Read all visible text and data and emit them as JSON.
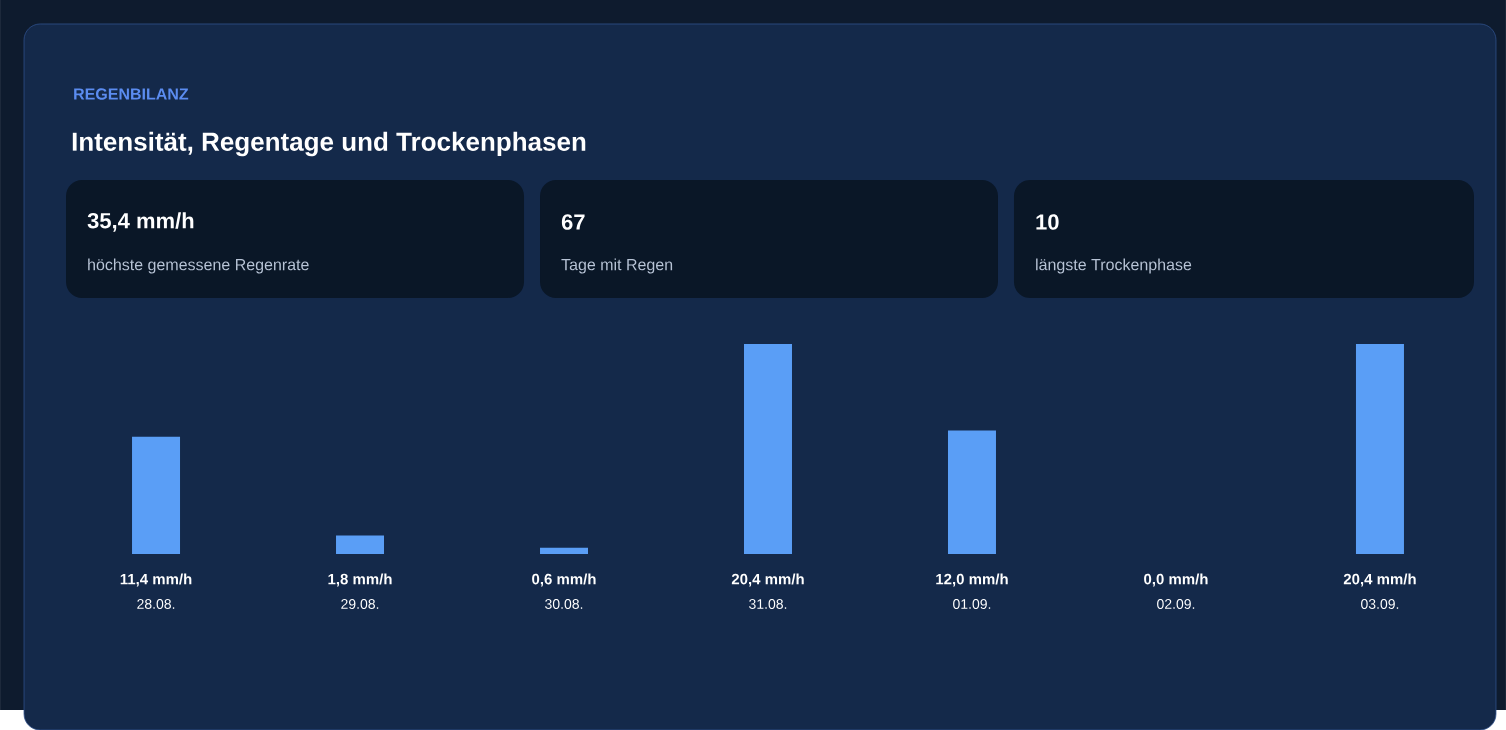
{
  "chart_data": [
    {
      "type": "other",
      "title": "REGENBILANZ",
      "subtitle": "Intensität, Regentage und Trockenphasen",
      "annotations": [
        "35,4 mm/h",
        "höchste gemessene Regenrate",
        "67",
        "Tage mit Regen",
        "10",
        "längste Trockenphase"
      ]
    },
    {
      "type": "bar",
      "categories": [
        "28.08.",
        "29.08.",
        "30.08.",
        "31.08.",
        "01.09.",
        "02.09.",
        "03.09."
      ],
      "values": [
        11.4,
        1.8,
        0.6,
        20.4,
        12.0,
        0.0,
        20.4
      ],
      "value_labels": [
        "11,4 mm/h",
        "1,8 mm/h",
        "0,6 mm/h",
        "20,4 mm/h",
        "12,0 mm/h",
        "0,0 mm/h",
        "20,4 mm/h"
      ],
      "color": "#5a9ef6"
    }
  ]
}
